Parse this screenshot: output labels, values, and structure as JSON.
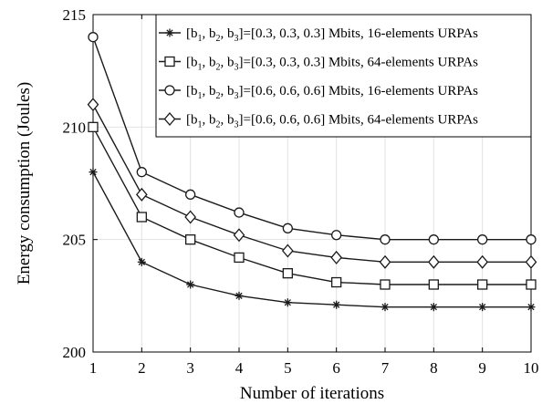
{
  "chart_data": {
    "type": "line",
    "xlabel": "Number of iterations",
    "ylabel": "Energy consumption (Joules)",
    "xlim": [
      1,
      10
    ],
    "ylim": [
      200,
      215
    ],
    "xticks": [
      "1",
      "2",
      "3",
      "4",
      "5",
      "6",
      "7",
      "8",
      "9",
      "10"
    ],
    "yticks": [
      "200",
      "205",
      "210",
      "215"
    ],
    "grid": true,
    "legend_position": "top-right",
    "x": [
      1,
      2,
      3,
      4,
      5,
      6,
      7,
      8,
      9,
      10
    ],
    "series": [
      {
        "marker": "star",
        "legend": {
          "pre": "[b",
          "s1": "1",
          "m1": ", b",
          "s2": "2",
          "m2": ", b",
          "s3": "3",
          "post": "]=[0.3, 0.3, 0.3] Mbits, 16-elements URPAs"
        },
        "values": [
          208,
          204,
          203,
          202.5,
          202.2,
          202.1,
          202,
          202,
          202,
          202
        ]
      },
      {
        "marker": "square",
        "legend": {
          "pre": "[b",
          "s1": "1",
          "m1": ", b",
          "s2": "2",
          "m2": ", b",
          "s3": "3",
          "post": "]=[0.3, 0.3, 0.3] Mbits, 64-elements URPAs"
        },
        "values": [
          210,
          206,
          205,
          204.2,
          203.5,
          203.1,
          203,
          203,
          203,
          203
        ]
      },
      {
        "marker": "circle",
        "legend": {
          "pre": "[b",
          "s1": "1",
          "m1": ", b",
          "s2": "2",
          "m2": ", b",
          "s3": "3",
          "post": "]=[0.6, 0.6, 0.6] Mbits, 16-elements URPAs"
        },
        "values": [
          214,
          208,
          207,
          206.2,
          205.5,
          205.2,
          205,
          205,
          205,
          205
        ]
      },
      {
        "marker": "diamond",
        "legend": {
          "pre": "[b",
          "s1": "1",
          "m1": ", b",
          "s2": "2",
          "m2": ", b",
          "s3": "3",
          "post": "]=[0.6, 0.6, 0.6] Mbits, 64-elements URPAs"
        },
        "values": [
          211,
          207,
          206,
          205.2,
          204.5,
          204.2,
          204,
          204,
          204,
          204
        ]
      }
    ]
  }
}
